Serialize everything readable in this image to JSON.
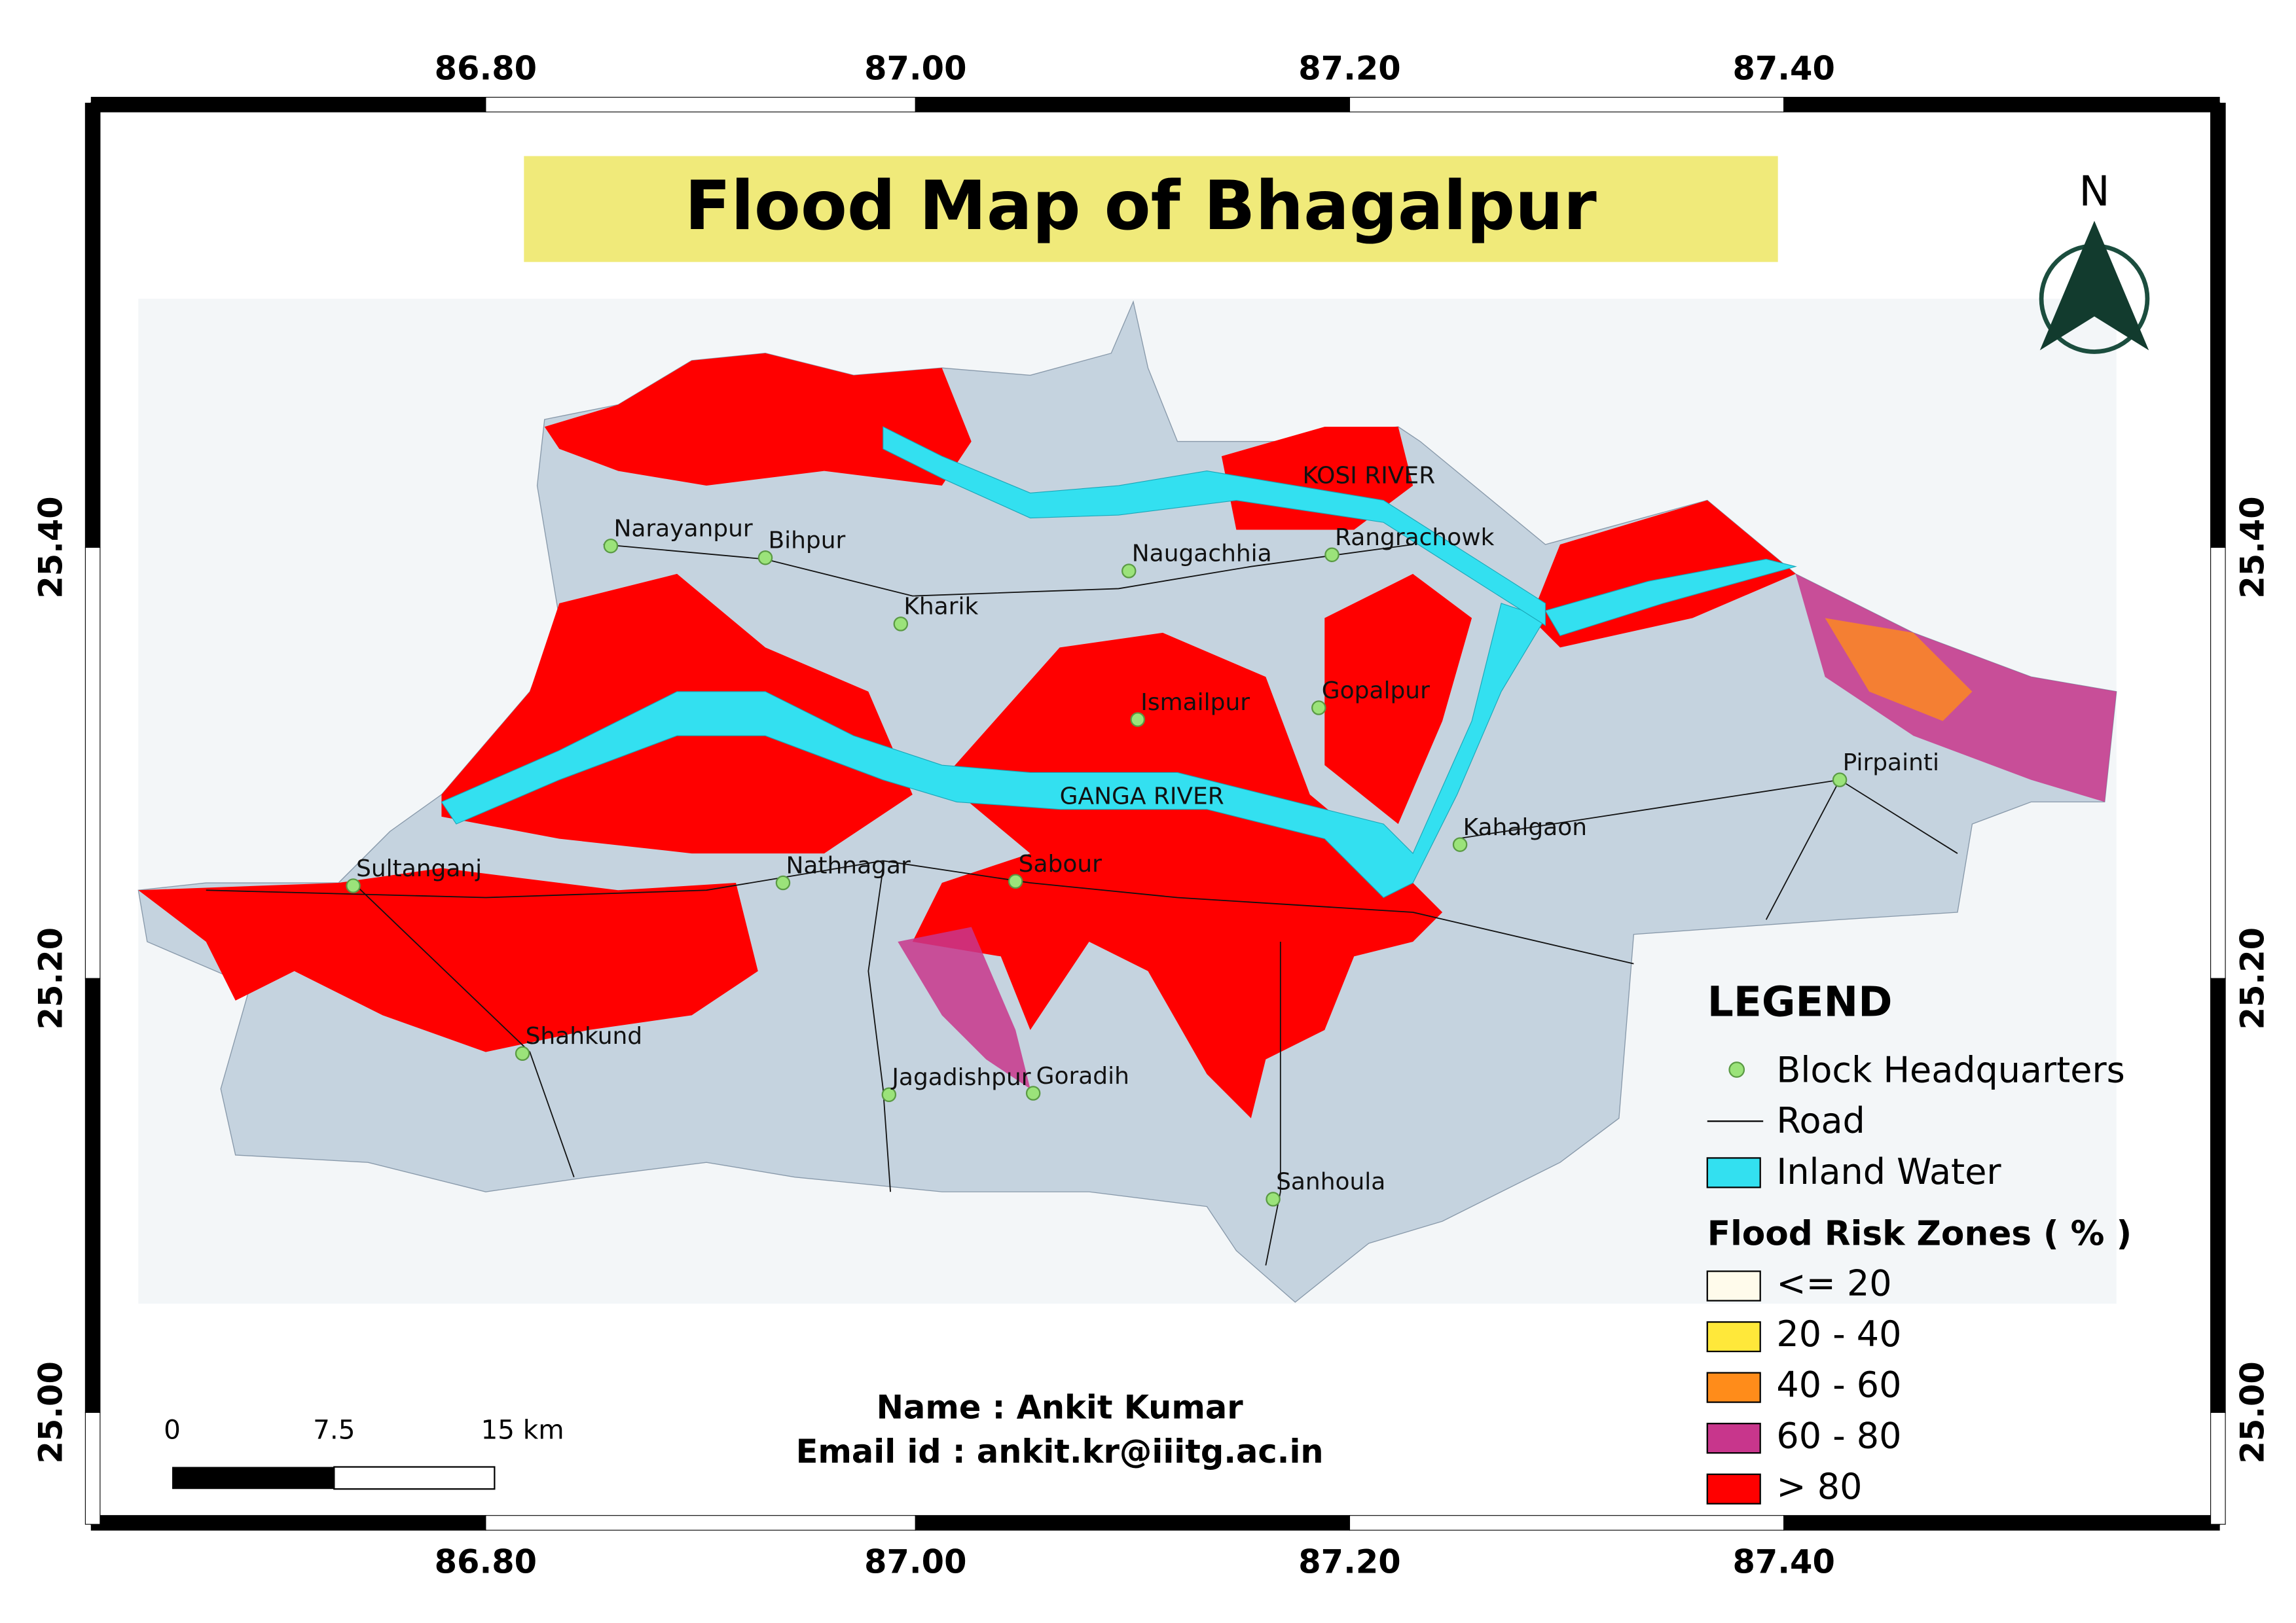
{
  "map": {
    "title": "Flood Map of Bhagalpur",
    "grid": {
      "x_labels": [
        "86.80",
        "87.00",
        "87.20",
        "87.40"
      ],
      "y_labels": [
        "25.40",
        "25.20",
        "25.00"
      ]
    },
    "north": "N",
    "places": [
      "Narayanpur",
      "Bihpur",
      "Kharik",
      "Naugachhia",
      "Rangrachowk",
      "Ismailpur",
      "Gopalpur",
      "Pirpainti",
      "Kahalgaon",
      "Sultanganj",
      "Nathnagar",
      "Sabour",
      "Shahkund",
      "Jagadishpur",
      "Goradih",
      "Sanhoula"
    ],
    "rivers": [
      "KOSI RIVER",
      "GANGA RIVER"
    ],
    "legend": {
      "title": "LEGEND",
      "items": [
        "Block Headquarters",
        "Road",
        "Inland Water"
      ],
      "zones_title": "Flood Risk Zones ( % )",
      "zones": [
        {
          "label": "<= 20",
          "color": "#fffbeb"
        },
        {
          "label": "20 - 40",
          "color": "#ffe83a"
        },
        {
          "label": "40 - 60",
          "color": "#ff8c1a"
        },
        {
          "label": "60 - 80",
          "color": "#c8368c"
        },
        {
          "label": "> 80",
          "color": "#ff0000"
        }
      ]
    },
    "scale_bar": [
      "0",
      "7.5",
      "15 km"
    ],
    "author": {
      "name": "Name : Ankit Kumar",
      "email": "Email id : ankit.kr@iiitg.ac.in"
    }
  }
}
